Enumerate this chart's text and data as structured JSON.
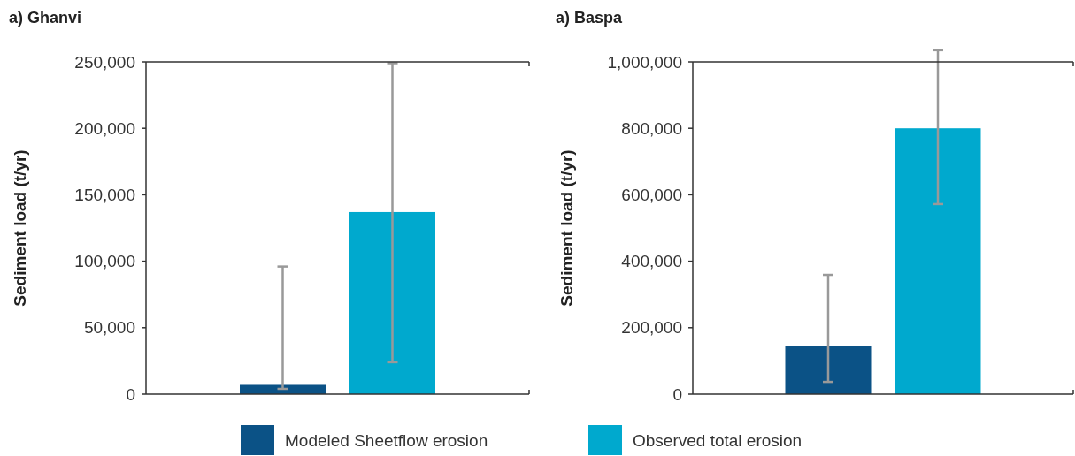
{
  "chart_data": [
    {
      "type": "bar",
      "title": "a) Ghanvi",
      "ylabel": "Sediment load (t/yr)",
      "categories": [
        null
      ],
      "series": [
        {
          "name": "Modeled Sheetflow erosion",
          "color": "#0b5286",
          "values": [
            7000
          ],
          "errors": [
            [
              4000,
              96000
            ]
          ]
        },
        {
          "name": "Observed total erosion",
          "color": "#00a9ce",
          "values": [
            137000
          ],
          "errors": [
            [
              24000,
              249000
            ]
          ]
        }
      ],
      "ylim": [
        0,
        250000
      ],
      "yticks": [
        {
          "value": 0,
          "label": "0"
        },
        {
          "value": 50000,
          "label": "50,000"
        },
        {
          "value": 100000,
          "label": "100,000"
        },
        {
          "value": 150000,
          "label": "150,000"
        },
        {
          "value": 200000,
          "label": "200,000"
        },
        {
          "value": 250000,
          "label": "250,000"
        }
      ],
      "grid": false,
      "legend": "bottom"
    },
    {
      "type": "bar",
      "title": "a) Baspa",
      "ylabel": "Sediment load (t/yr)",
      "categories": [
        null
      ],
      "series": [
        {
          "color": "#0b5286",
          "values": [
            146000
          ],
          "errors": [
            [
              37000,
              359000
            ]
          ]
        },
        {
          "color": "#00a9ce",
          "values": [
            800000
          ],
          "errors": [
            [
              572000,
              1035000
            ]
          ]
        }
      ],
      "ylim": [
        0,
        1000000
      ],
      "yticks": [
        {
          "value": 0,
          "label": "0"
        },
        {
          "value": 200000,
          "label": "200,000"
        },
        {
          "value": 400000,
          "label": "400,000"
        },
        {
          "value": 600000,
          "label": "600,000"
        },
        {
          "value": 800000,
          "label": "800,000"
        },
        {
          "value": 1000000,
          "label": "1,000,000"
        }
      ],
      "grid": false
    }
  ]
}
